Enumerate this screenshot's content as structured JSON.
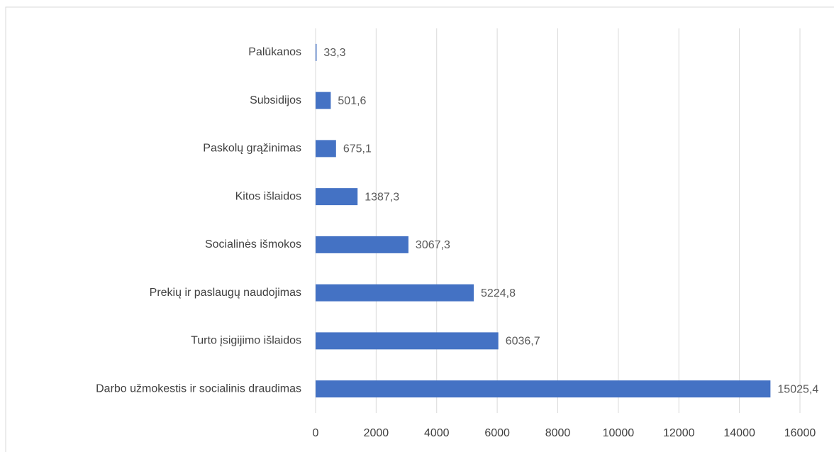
{
  "chart_data": {
    "type": "hbar",
    "categories": [
      "Palūkanos",
      "Subsidijos",
      "Paskolų grąžinimas",
      "Kitos išlaidos",
      "Socialinės išmokos",
      "Prekių ir paslaugų naudojimas",
      "Turto įsigijimo išlaidos",
      "Darbo užmokestis ir socialinis draudimas"
    ],
    "values": [
      33.3,
      501.6,
      675.1,
      1387.3,
      3067.3,
      5224.8,
      6036.7,
      15025.4
    ],
    "value_labels": [
      "33,3",
      "501,6",
      "675,1",
      "1387,3",
      "3067,3",
      "5224,8",
      "6036,7",
      "15025,4"
    ],
    "color": "#4472c4",
    "xlim": [
      0,
      16000
    ],
    "xticks": [
      0,
      2000,
      4000,
      6000,
      8000,
      10000,
      12000,
      14000,
      16000
    ],
    "grid": true
  }
}
